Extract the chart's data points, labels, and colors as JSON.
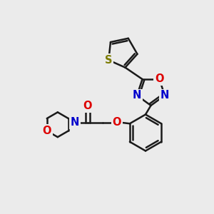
{
  "background_color": "#ebebeb",
  "bond_color": "#1a1a1a",
  "atom_colors": {
    "S": "#7a7a00",
    "O": "#dd0000",
    "N": "#0000cc",
    "C": "#1a1a1a"
  },
  "bond_width": 1.8,
  "font_size_atoms": 10.5
}
